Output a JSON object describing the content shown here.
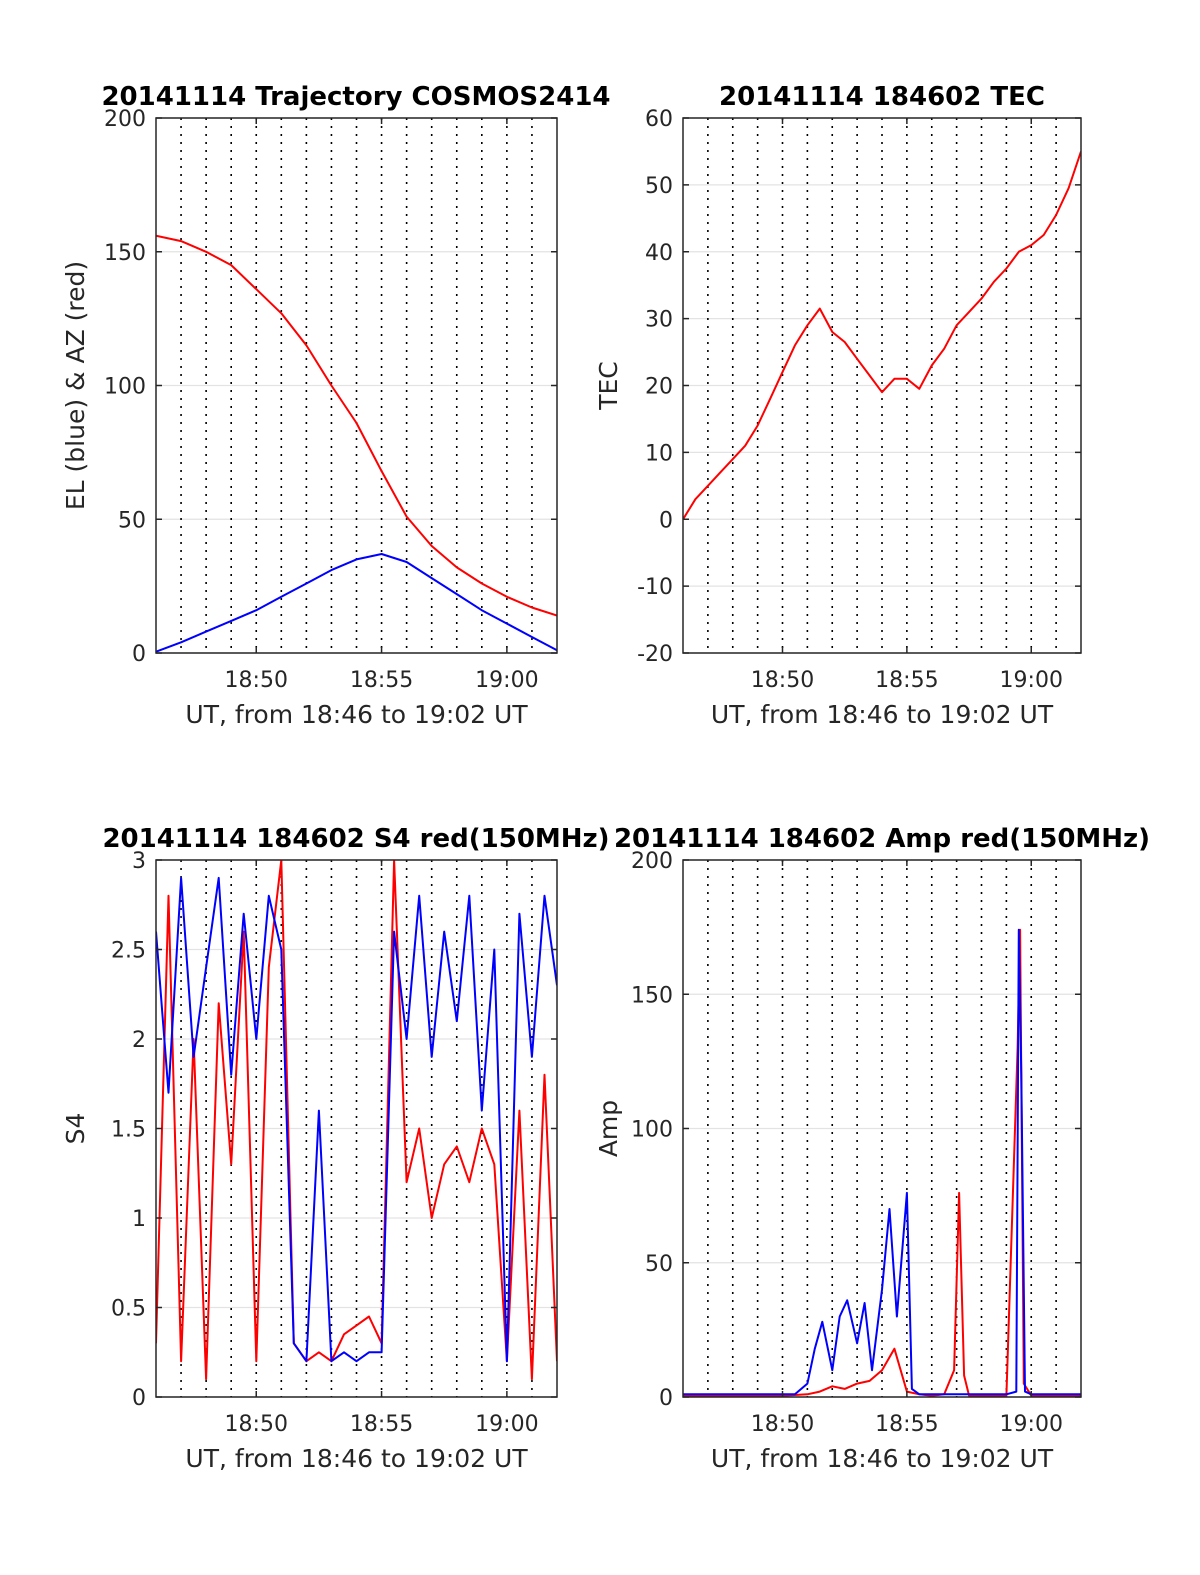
{
  "chart_data": [
    {
      "type": "line",
      "title": "20141114 Trajectory COSMOS2414",
      "xlabel": "UT, from 18:46 to 19:02 UT",
      "ylabel": "EL (blue) & AZ (red)",
      "xlim": [
        0,
        16
      ],
      "ylim": [
        0,
        200
      ],
      "x_ticks": [
        4,
        9,
        14
      ],
      "x_tick_labels": [
        "18:50",
        "18:55",
        "19:00"
      ],
      "y_ticks": [
        0,
        50,
        100,
        150,
        200
      ],
      "y_tick_labels": [
        "0",
        "50",
        "100",
        "150",
        "200"
      ],
      "grid": true,
      "series": [
        {
          "color": "#ff0000",
          "x": [
            0,
            1,
            2,
            3,
            4,
            5,
            6,
            7,
            8,
            9,
            10,
            11,
            12,
            13,
            14,
            15,
            16
          ],
          "values": [
            156,
            154,
            150,
            145,
            136,
            127,
            115,
            100,
            86,
            68,
            51,
            40,
            32,
            26,
            21,
            17,
            14
          ]
        },
        {
          "color": "#0000ff",
          "x": [
            0,
            1,
            2,
            3,
            4,
            5,
            6,
            7,
            8,
            9,
            10,
            11,
            12,
            13,
            14,
            15,
            16
          ],
          "values": [
            0.5,
            4,
            8,
            12,
            16,
            21,
            26,
            31,
            35,
            37,
            34,
            28,
            22,
            16,
            11,
            6,
            1
          ]
        }
      ]
    },
    {
      "type": "line",
      "title": "20141114 184602 TEC",
      "xlabel": "UT, from 18:46 to 19:02 UT",
      "ylabel": "TEC",
      "xlim": [
        0,
        16
      ],
      "ylim": [
        -20,
        60
      ],
      "x_ticks": [
        4,
        9,
        14
      ],
      "x_tick_labels": [
        "18:50",
        "18:55",
        "19:00"
      ],
      "y_ticks": [
        -20,
        -10,
        0,
        10,
        20,
        30,
        40,
        50,
        60
      ],
      "y_tick_labels": [
        "-20",
        "-10",
        "0",
        "10",
        "20",
        "30",
        "40",
        "50",
        "60"
      ],
      "grid": true,
      "series": [
        {
          "color": "#ff0000",
          "x": [
            0,
            0.5,
            1,
            1.5,
            2,
            2.5,
            3,
            3.5,
            4,
            4.5,
            5,
            5.5,
            6,
            6.5,
            7,
            7.5,
            8,
            8.5,
            9,
            9.5,
            10,
            10.5,
            11,
            11.5,
            12,
            12.5,
            13,
            13.5,
            14,
            14.5,
            15,
            15.5,
            16
          ],
          "values": [
            0,
            3,
            5,
            7,
            9,
            11,
            14,
            18,
            22,
            26,
            29,
            31.5,
            28,
            26.5,
            24,
            21.5,
            19,
            21,
            21,
            19.5,
            23,
            25.5,
            29,
            31,
            33,
            35.5,
            37.5,
            40,
            41,
            42.5,
            45.5,
            49.5,
            55
          ]
        }
      ]
    },
    {
      "type": "line",
      "title": "20141114 184602 S4 red(150MHz)",
      "xlabel": "UT, from 18:46 to 19:02 UT",
      "ylabel": "S4",
      "xlim": [
        0,
        16
      ],
      "ylim": [
        0,
        3
      ],
      "x_ticks": [
        4,
        9,
        14
      ],
      "x_tick_labels": [
        "18:50",
        "18:55",
        "19:00"
      ],
      "y_ticks": [
        0,
        0.5,
        1,
        1.5,
        2,
        2.5,
        3
      ],
      "y_tick_labels": [
        "0",
        "0.5",
        "1",
        "1.5",
        "2",
        "2.5",
        "3"
      ],
      "grid": true,
      "series": [
        {
          "color": "#ff0000",
          "x": [
            0,
            0.5,
            1,
            1.5,
            2,
            2.5,
            3,
            3.5,
            4,
            4.5,
            5,
            5.5,
            6,
            6.5,
            7,
            7.5,
            8,
            8.5,
            9,
            9.5,
            10,
            10.5,
            11,
            11.5,
            12,
            12.5,
            13,
            13.5,
            14,
            14.5,
            15,
            15.5,
            16
          ],
          "values": [
            0.3,
            2.8,
            0.2,
            2.0,
            0.1,
            2.2,
            1.3,
            2.6,
            0.2,
            2.4,
            3.0,
            0.3,
            0.2,
            0.25,
            0.2,
            0.35,
            0.4,
            0.45,
            0.3,
            3.0,
            1.2,
            1.5,
            1.0,
            1.3,
            1.4,
            1.2,
            1.5,
            1.3,
            0.2,
            1.6,
            0.1,
            1.8,
            0.2
          ]
        },
        {
          "color": "#0000ff",
          "x": [
            0,
            0.5,
            1,
            1.5,
            2,
            2.5,
            3,
            3.5,
            4,
            4.5,
            5,
            5.5,
            6,
            6.5,
            7,
            7.5,
            8,
            8.5,
            9,
            9.5,
            10,
            10.5,
            11,
            11.5,
            12,
            12.5,
            13,
            13.5,
            14,
            14.5,
            15,
            15.5,
            16
          ],
          "values": [
            2.6,
            1.7,
            2.9,
            1.9,
            2.4,
            2.9,
            1.8,
            2.7,
            2.0,
            2.8,
            2.5,
            0.3,
            0.2,
            1.6,
            0.2,
            0.25,
            0.2,
            0.25,
            0.25,
            2.6,
            2.0,
            2.8,
            1.9,
            2.6,
            2.1,
            2.8,
            1.6,
            2.5,
            0.2,
            2.7,
            1.9,
            2.8,
            2.3
          ]
        }
      ]
    },
    {
      "type": "line",
      "title": "20141114 184602 Amp red(150MHz)",
      "xlabel": "UT, from 18:46 to 19:02 UT",
      "ylabel": "Amp",
      "xlim": [
        0,
        16
      ],
      "ylim": [
        0,
        200
      ],
      "x_ticks": [
        4,
        9,
        14
      ],
      "x_tick_labels": [
        "18:50",
        "18:55",
        "19:00"
      ],
      "y_ticks": [
        0,
        50,
        100,
        150,
        200
      ],
      "y_tick_labels": [
        "0",
        "50",
        "100",
        "150",
        "200"
      ],
      "grid": true,
      "series": [
        {
          "color": "#ff0000",
          "x": [
            0,
            4,
            5,
            5.5,
            6,
            6.5,
            7,
            7.5,
            8,
            8.5,
            9,
            9.5,
            10,
            10.5,
            10.9,
            11.1,
            11.3,
            11.5,
            13,
            13.45,
            13.55,
            13.7,
            14,
            16
          ],
          "values": [
            0.5,
            0.5,
            1,
            2,
            4,
            3,
            5,
            6,
            10,
            18,
            2,
            1,
            0.5,
            1,
            10,
            76,
            8,
            0.5,
            0.5,
            130,
            174,
            5,
            0.5,
            0.5
          ]
        },
        {
          "color": "#0000ff",
          "x": [
            0,
            4,
            4.5,
            5,
            5.3,
            5.6,
            6,
            6.3,
            6.6,
            7,
            7.3,
            7.6,
            8,
            8.3,
            8.6,
            9,
            9.2,
            9.5,
            10,
            13,
            13.4,
            13.5,
            13.6,
            13.75,
            14,
            16
          ],
          "values": [
            1,
            1,
            1,
            5,
            18,
            28,
            10,
            30,
            36,
            20,
            35,
            10,
            40,
            70,
            30,
            76,
            3,
            1,
            1,
            1,
            2,
            174,
            120,
            2,
            1,
            1
          ]
        }
      ]
    }
  ]
}
